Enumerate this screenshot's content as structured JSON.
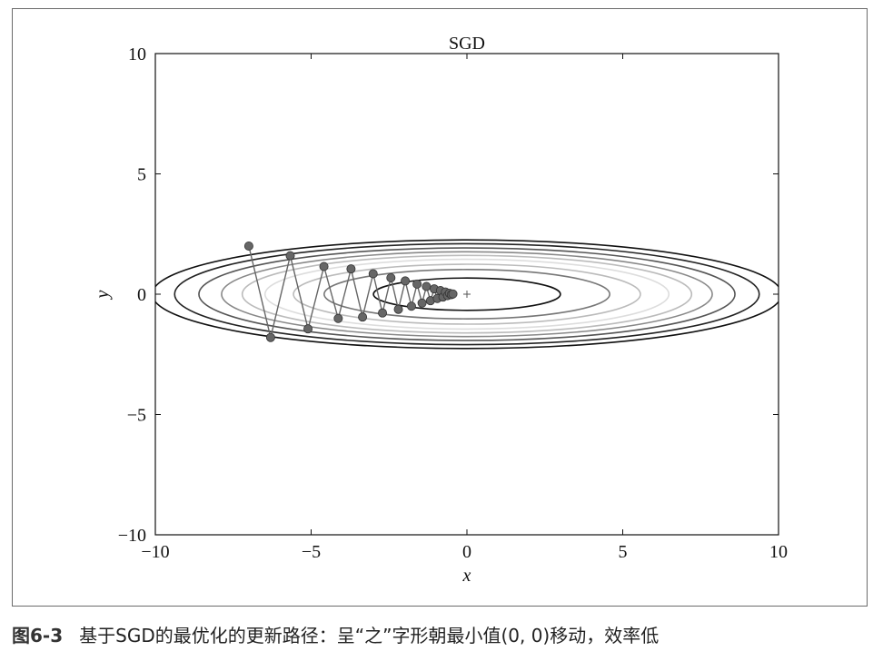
{
  "chart_data": {
    "type": "line",
    "title": "SGD",
    "xlabel": "x",
    "ylabel": "y",
    "xlim": [
      -10,
      10
    ],
    "ylim": [
      -10,
      10
    ],
    "xticks": [
      -10,
      -5,
      0,
      5,
      10
    ],
    "yticks": [
      -10,
      -5,
      0,
      5,
      10
    ],
    "xtick_labels": [
      "−10",
      "−5",
      "0",
      "5",
      "10"
    ],
    "ytick_labels": [
      "−10",
      "−5",
      "0",
      "5",
      "10"
    ],
    "grid": false,
    "contours": {
      "function": "f(x, y) = x^2 / 20 + y^2",
      "levels": [
        {
          "level": 0.45,
          "color": "#111111"
        },
        {
          "level": 1.05,
          "color": "#777777"
        },
        {
          "level": 1.55,
          "color": "#bbbbbb"
        },
        {
          "level": 2.1,
          "color": "#dddddd"
        },
        {
          "level": 2.6,
          "color": "#bbbbbb"
        },
        {
          "level": 3.1,
          "color": "#888888"
        },
        {
          "level": 3.7,
          "color": "#555555"
        },
        {
          "level": 4.4,
          "color": "#222222"
        },
        {
          "level": 5.1,
          "color": "#111111"
        }
      ]
    },
    "minimum_marker": {
      "x": 0,
      "y": 0,
      "symbol": "+"
    },
    "series": [
      {
        "color": "#666666",
        "points": [
          [
            -7.0,
            2.0
          ],
          [
            -6.3,
            -1.8
          ],
          [
            -5.67,
            1.6
          ],
          [
            -5.1,
            -1.44
          ],
          [
            -4.59,
            1.15
          ],
          [
            -4.13,
            -1.01
          ],
          [
            -3.72,
            1.05
          ],
          [
            -3.35,
            -0.95
          ],
          [
            -3.01,
            0.85
          ],
          [
            -2.71,
            -0.78
          ],
          [
            -2.44,
            0.68
          ],
          [
            -2.2,
            -0.63
          ],
          [
            -1.98,
            0.55
          ],
          [
            -1.78,
            -0.5
          ],
          [
            -1.6,
            0.42
          ],
          [
            -1.44,
            -0.37
          ],
          [
            -1.3,
            0.32
          ],
          [
            -1.17,
            -0.27
          ],
          [
            -1.05,
            0.22
          ],
          [
            -0.95,
            -0.18
          ],
          [
            -0.85,
            0.15
          ],
          [
            -0.77,
            -0.12
          ],
          [
            -0.69,
            0.09
          ],
          [
            -0.62,
            -0.06
          ],
          [
            -0.56,
            0.04
          ],
          [
            -0.5,
            -0.02
          ],
          [
            -0.45,
            0.01
          ]
        ]
      }
    ]
  },
  "caption": {
    "figure_label": "图6-3",
    "text": "基于SGD的最优化的更新路径：呈“之”字形朝最小值(0, 0)移动，效率低"
  }
}
